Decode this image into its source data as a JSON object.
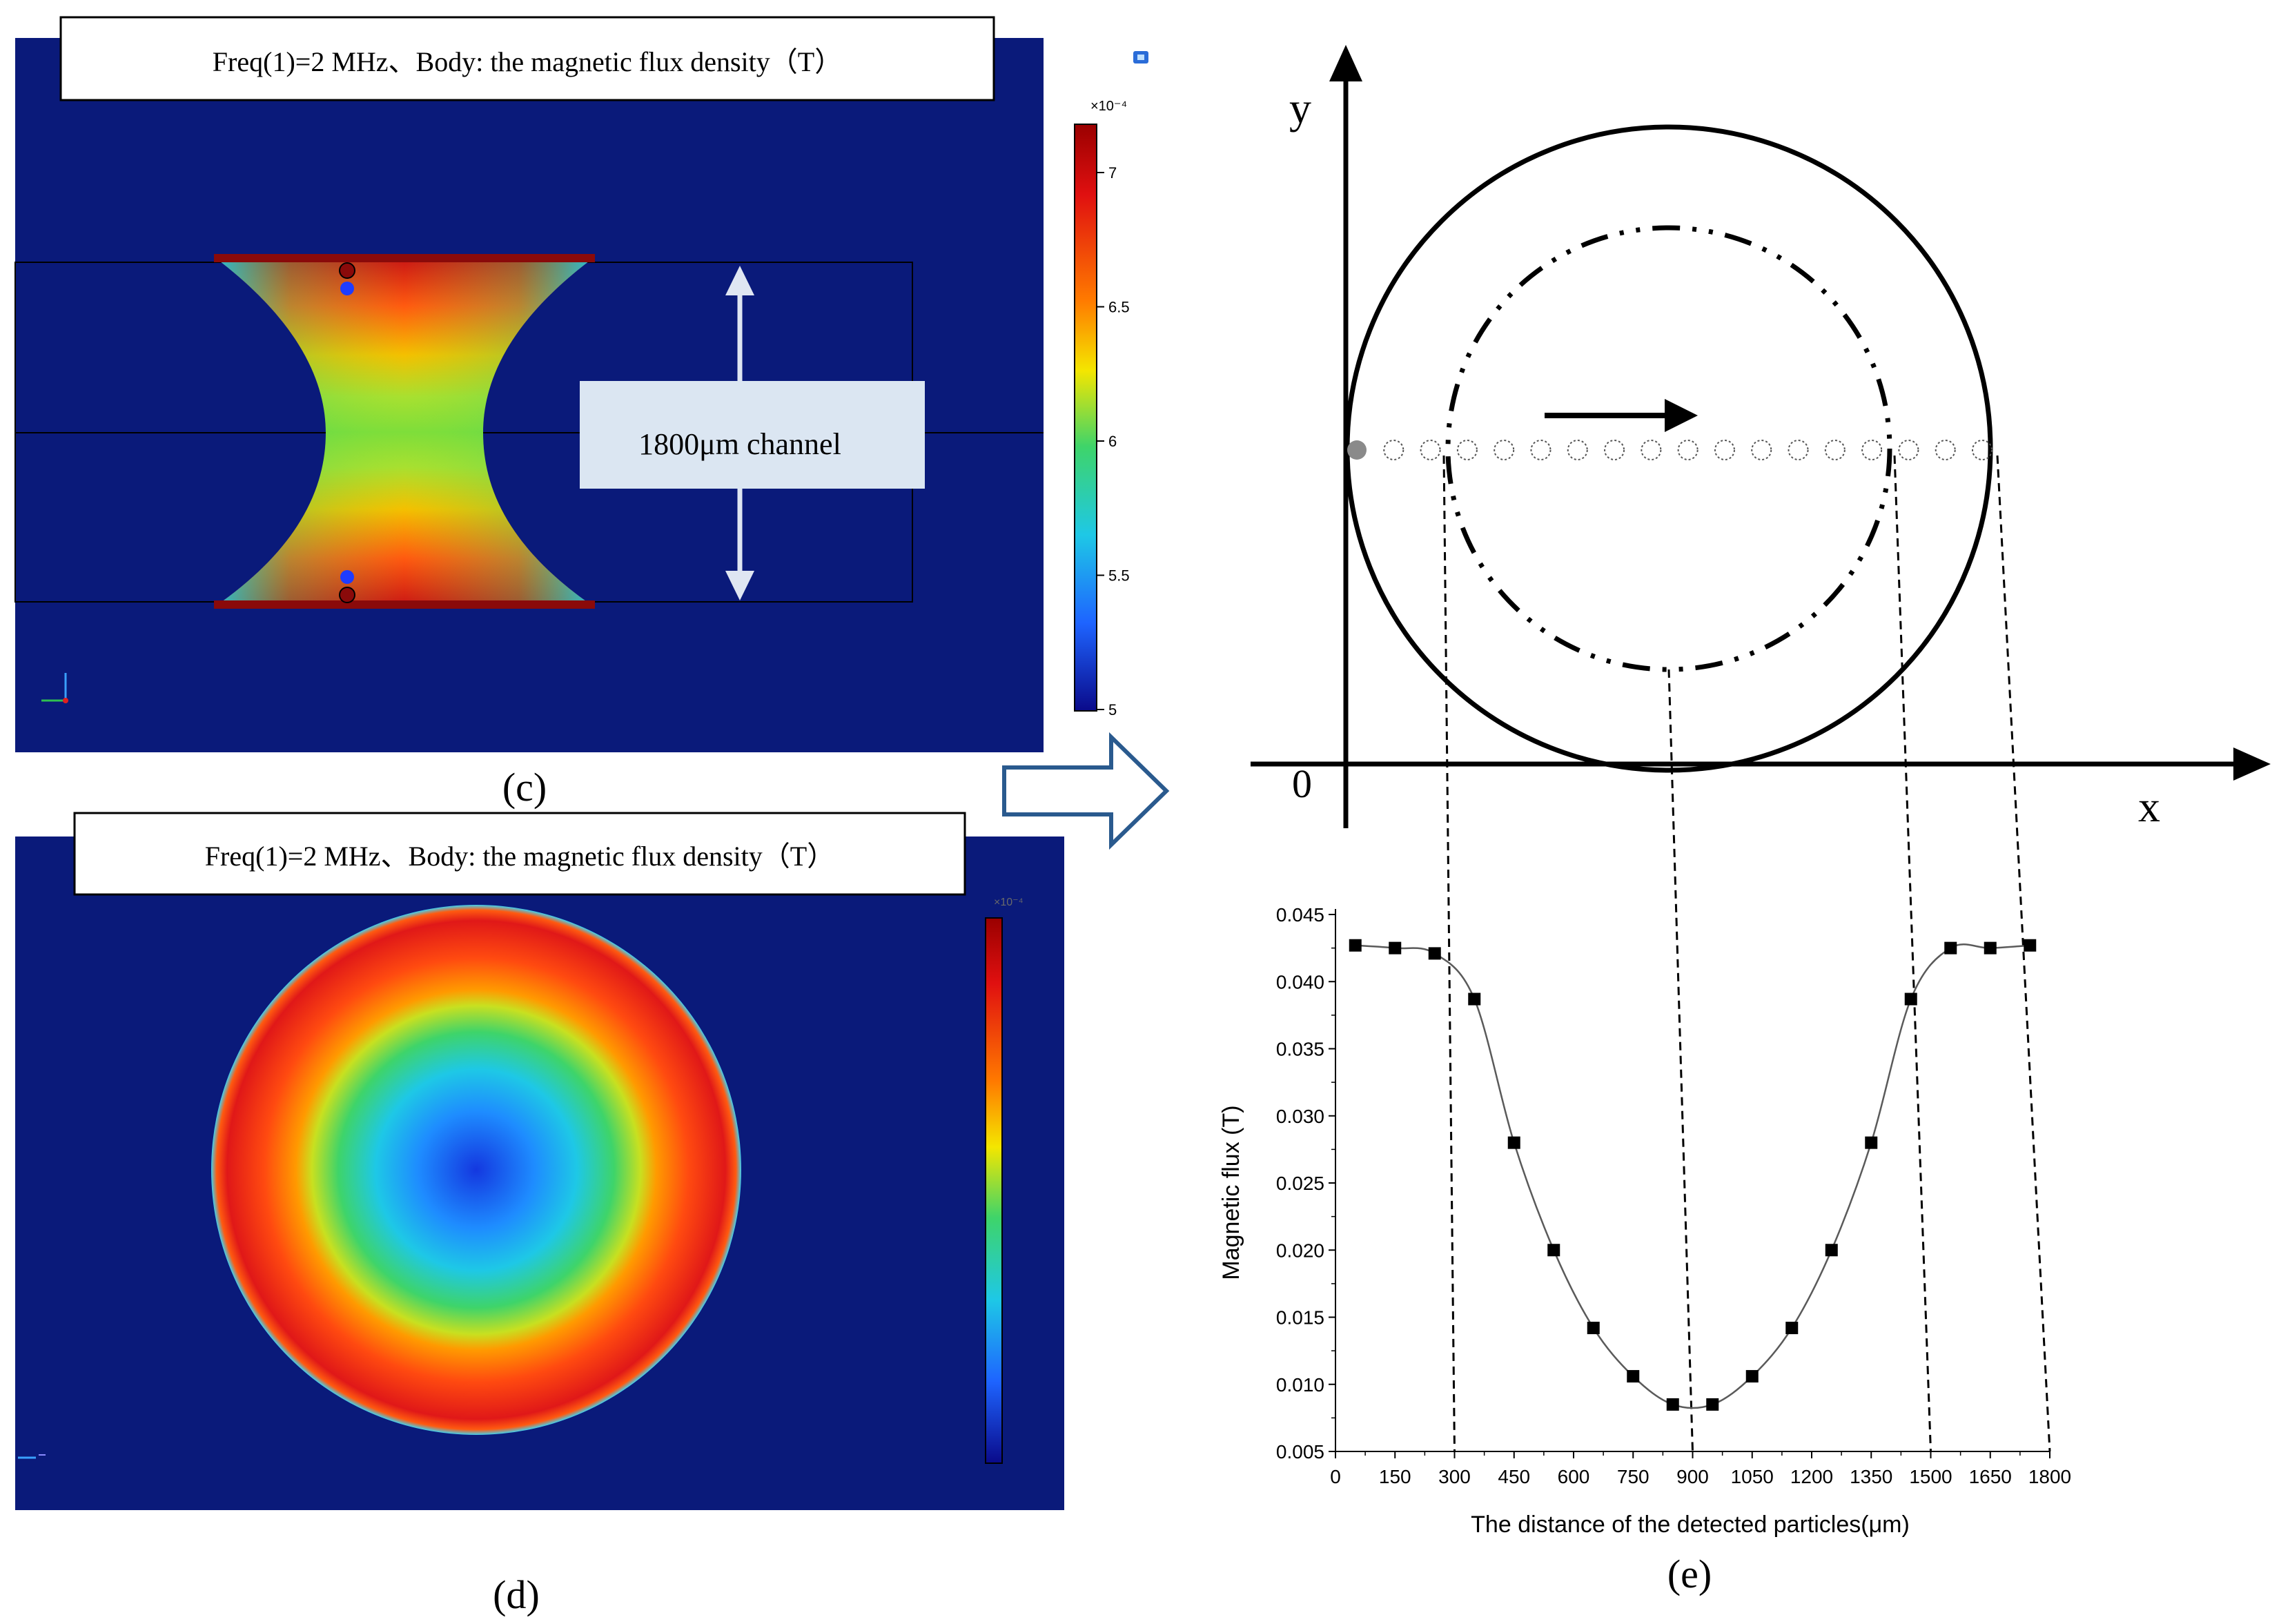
{
  "colors": {
    "sim_background": "#0a1a7a",
    "red": "#c81414",
    "orange": "#ff7a00",
    "yellow": "#f4e600",
    "green": "#3ed46a",
    "cyan": "#1ec8e6",
    "blue": "#1e64ff",
    "label_box": "#dbe6f2",
    "arrow_outline": "#2a5a8e"
  },
  "panel_c": {
    "title": "Freq(1)=2 MHz、Body: the magnetic flux density（T）",
    "channel_label": "1800μm channel",
    "caption": "(c)",
    "colorbar": {
      "exponent": "×10⁻⁴",
      "ticks": [
        "7",
        "6.5",
        "6",
        "5.5",
        "5"
      ]
    }
  },
  "panel_d": {
    "title": "Freq(1)=2 MHz、Body: the magnetic flux density（T）",
    "caption": "(d)",
    "colorbar": {
      "exponent": "×10⁻⁴",
      "ticks": [
        "",
        "",
        "",
        "",
        "",
        "",
        ""
      ]
    }
  },
  "panel_e": {
    "caption": "(e)",
    "axis_y": "y",
    "axis_x": "x",
    "origin": "0",
    "particle_count": 18
  },
  "chart_data": {
    "type": "line",
    "title": "",
    "xlabel": "The distance of the detected particles(μm)",
    "ylabel": "Magnetic flux (T)",
    "xlim": [
      0,
      1800
    ],
    "ylim": [
      0.005,
      0.045
    ],
    "xticks": [
      0,
      150,
      300,
      450,
      600,
      750,
      900,
      1050,
      1200,
      1350,
      1500,
      1650,
      1800
    ],
    "yticks": [
      "0.005",
      "0.010",
      "0.015",
      "0.020",
      "0.025",
      "0.030",
      "0.035",
      "0.040",
      "0.045"
    ],
    "series": [
      {
        "name": "Magnetic flux",
        "marker": "square",
        "x": [
          50,
          150,
          250,
          350,
          450,
          550,
          650,
          750,
          850,
          950,
          1050,
          1150,
          1250,
          1350,
          1450,
          1550,
          1650,
          1750
        ],
        "y": [
          0.0427,
          0.0425,
          0.0421,
          0.0387,
          0.028,
          0.02,
          0.0142,
          0.0106,
          0.0085,
          0.0085,
          0.0106,
          0.0142,
          0.02,
          0.028,
          0.0387,
          0.0425,
          0.0425,
          0.0427
        ]
      }
    ],
    "reference_lines_x": [
      300,
      900,
      1500,
      1800
    ]
  }
}
